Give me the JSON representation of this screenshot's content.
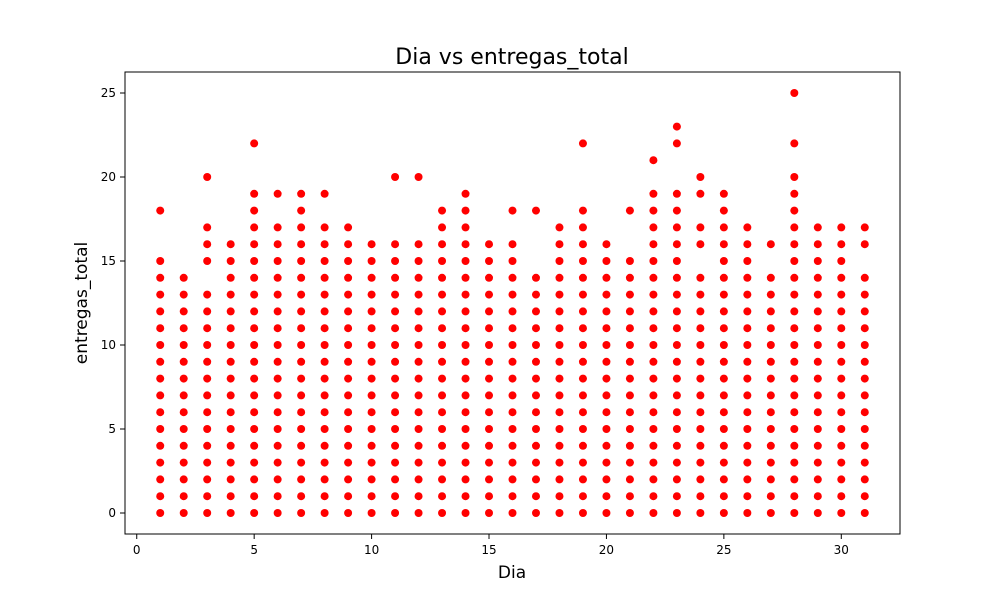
{
  "chart_data": {
    "type": "scatter",
    "title": "Dia vs entregas_total",
    "xlabel": "Dia",
    "ylabel": "entregas_total",
    "xlim": [
      -0.5,
      32.5
    ],
    "ylim": [
      -1.25,
      26.25
    ],
    "xticks": [
      0,
      5,
      10,
      15,
      20,
      25,
      30
    ],
    "yticks": [
      0,
      5,
      10,
      15,
      20,
      25
    ],
    "grid": false,
    "legend": "none",
    "marker_color": "#ff0000",
    "points_by_day": [
      {
        "x": 1,
        "y": [
          0,
          1,
          2,
          3,
          4,
          5,
          6,
          7,
          8,
          9,
          10,
          11,
          12,
          13,
          14,
          15,
          18
        ]
      },
      {
        "x": 2,
        "y": [
          0,
          1,
          2,
          3,
          4,
          5,
          6,
          7,
          8,
          9,
          10,
          11,
          12,
          13,
          14
        ]
      },
      {
        "x": 3,
        "y": [
          0,
          1,
          2,
          3,
          4,
          5,
          6,
          7,
          8,
          9,
          10,
          11,
          12,
          13,
          15,
          16,
          17,
          20
        ]
      },
      {
        "x": 4,
        "y": [
          0,
          1,
          2,
          3,
          4,
          5,
          6,
          7,
          8,
          9,
          10,
          11,
          12,
          13,
          14,
          15,
          16
        ]
      },
      {
        "x": 5,
        "y": [
          0,
          1,
          2,
          3,
          4,
          5,
          6,
          7,
          8,
          9,
          10,
          11,
          12,
          13,
          14,
          15,
          16,
          17,
          18,
          19,
          22
        ]
      },
      {
        "x": 6,
        "y": [
          0,
          1,
          2,
          3,
          4,
          5,
          6,
          7,
          8,
          9,
          10,
          11,
          12,
          13,
          14,
          15,
          16,
          17,
          19
        ]
      },
      {
        "x": 7,
        "y": [
          0,
          1,
          2,
          3,
          4,
          5,
          6,
          7,
          8,
          9,
          10,
          11,
          12,
          13,
          14,
          15,
          16,
          17,
          18,
          19
        ]
      },
      {
        "x": 8,
        "y": [
          0,
          1,
          2,
          3,
          4,
          5,
          6,
          7,
          8,
          9,
          10,
          11,
          12,
          13,
          14,
          15,
          16,
          17,
          19
        ]
      },
      {
        "x": 9,
        "y": [
          0,
          1,
          2,
          3,
          4,
          5,
          6,
          7,
          8,
          9,
          10,
          11,
          12,
          13,
          14,
          15,
          16,
          17
        ]
      },
      {
        "x": 10,
        "y": [
          0,
          1,
          2,
          3,
          4,
          5,
          6,
          7,
          8,
          9,
          10,
          11,
          12,
          13,
          14,
          15,
          16
        ]
      },
      {
        "x": 11,
        "y": [
          0,
          1,
          2,
          3,
          4,
          5,
          6,
          7,
          8,
          9,
          10,
          11,
          12,
          13,
          14,
          15,
          16,
          20
        ]
      },
      {
        "x": 12,
        "y": [
          0,
          1,
          2,
          3,
          4,
          5,
          6,
          7,
          8,
          9,
          10,
          11,
          12,
          13,
          14,
          15,
          16,
          20
        ]
      },
      {
        "x": 13,
        "y": [
          0,
          1,
          2,
          3,
          4,
          5,
          6,
          7,
          8,
          9,
          10,
          11,
          12,
          13,
          14,
          15,
          16,
          17,
          18
        ]
      },
      {
        "x": 14,
        "y": [
          0,
          1,
          2,
          3,
          4,
          5,
          6,
          7,
          8,
          9,
          10,
          11,
          12,
          13,
          14,
          15,
          16,
          17,
          18,
          19
        ]
      },
      {
        "x": 15,
        "y": [
          0,
          1,
          2,
          3,
          4,
          5,
          6,
          7,
          8,
          9,
          10,
          11,
          12,
          13,
          14,
          15,
          16
        ]
      },
      {
        "x": 16,
        "y": [
          0,
          1,
          2,
          3,
          4,
          5,
          6,
          7,
          8,
          9,
          10,
          11,
          12,
          13,
          14,
          15,
          16,
          18
        ]
      },
      {
        "x": 17,
        "y": [
          0,
          1,
          2,
          3,
          4,
          5,
          6,
          7,
          8,
          9,
          10,
          11,
          12,
          13,
          14,
          18
        ]
      },
      {
        "x": 18,
        "y": [
          0,
          1,
          2,
          3,
          4,
          5,
          6,
          7,
          8,
          9,
          10,
          11,
          12,
          13,
          14,
          15,
          16,
          17
        ]
      },
      {
        "x": 19,
        "y": [
          0,
          1,
          2,
          3,
          4,
          5,
          6,
          7,
          8,
          9,
          10,
          11,
          12,
          13,
          14,
          15,
          16,
          17,
          18,
          22
        ]
      },
      {
        "x": 20,
        "y": [
          0,
          1,
          2,
          3,
          4,
          5,
          6,
          7,
          8,
          9,
          10,
          11,
          12,
          13,
          14,
          15,
          16
        ]
      },
      {
        "x": 21,
        "y": [
          0,
          1,
          2,
          3,
          4,
          5,
          6,
          7,
          8,
          9,
          10,
          11,
          12,
          13,
          14,
          15,
          18
        ]
      },
      {
        "x": 22,
        "y": [
          0,
          1,
          2,
          3,
          4,
          5,
          6,
          7,
          8,
          9,
          10,
          11,
          12,
          13,
          14,
          15,
          16,
          17,
          18,
          19,
          21
        ]
      },
      {
        "x": 23,
        "y": [
          0,
          1,
          2,
          3,
          4,
          5,
          6,
          7,
          8,
          9,
          10,
          11,
          12,
          13,
          14,
          15,
          16,
          17,
          18,
          19,
          22,
          23
        ]
      },
      {
        "x": 24,
        "y": [
          0,
          1,
          2,
          3,
          4,
          5,
          6,
          7,
          8,
          9,
          10,
          11,
          12,
          13,
          14,
          16,
          17,
          19,
          20
        ]
      },
      {
        "x": 25,
        "y": [
          0,
          1,
          2,
          3,
          4,
          5,
          6,
          7,
          8,
          9,
          10,
          11,
          12,
          13,
          14,
          15,
          16,
          17,
          18,
          19
        ]
      },
      {
        "x": 26,
        "y": [
          0,
          1,
          2,
          3,
          4,
          5,
          6,
          7,
          8,
          9,
          10,
          11,
          12,
          13,
          14,
          15,
          16,
          17
        ]
      },
      {
        "x": 27,
        "y": [
          0,
          1,
          2,
          3,
          4,
          5,
          6,
          7,
          8,
          9,
          10,
          11,
          12,
          13,
          14,
          16
        ]
      },
      {
        "x": 28,
        "y": [
          0,
          1,
          2,
          3,
          4,
          5,
          6,
          7,
          8,
          9,
          10,
          11,
          12,
          13,
          14,
          15,
          16,
          17,
          18,
          19,
          20,
          22,
          25
        ]
      },
      {
        "x": 29,
        "y": [
          0,
          1,
          2,
          3,
          4,
          5,
          6,
          7,
          8,
          9,
          10,
          11,
          12,
          13,
          14,
          15,
          16,
          17
        ]
      },
      {
        "x": 30,
        "y": [
          0,
          1,
          2,
          3,
          4,
          5,
          6,
          7,
          8,
          9,
          10,
          11,
          12,
          13,
          14,
          15,
          16,
          17
        ]
      },
      {
        "x": 31,
        "y": [
          0,
          1,
          2,
          3,
          4,
          5,
          6,
          7,
          8,
          9,
          10,
          11,
          12,
          13,
          14,
          16,
          17
        ]
      }
    ]
  }
}
